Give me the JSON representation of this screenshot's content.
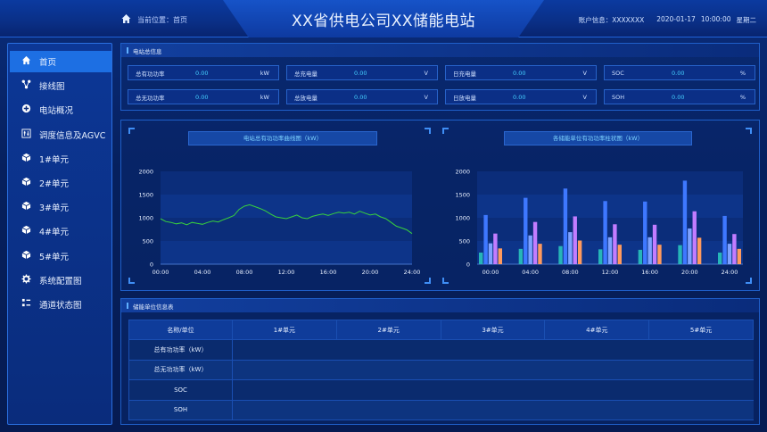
{
  "header": {
    "location_label": "当前位置：首页",
    "title": "XX省供电公司XX储能电站",
    "account": "账户信息：XXXXXXX",
    "date": "2020-01-17",
    "time": "10:00:00",
    "weekday": "星期二"
  },
  "sidebar": {
    "items": [
      {
        "label": "首页",
        "icon": "home-icon",
        "active": true
      },
      {
        "label": "接线图",
        "icon": "network-icon"
      },
      {
        "label": "电站概况",
        "icon": "plus-circle-icon"
      },
      {
        "label": "调度信息及AGVC",
        "icon": "sliders-icon"
      },
      {
        "label": "1#单元",
        "icon": "cube-icon"
      },
      {
        "label": "2#单元",
        "icon": "cube-icon"
      },
      {
        "label": "3#单元",
        "icon": "cube-icon"
      },
      {
        "label": "4#单元",
        "icon": "cube-icon"
      },
      {
        "label": "5#单元",
        "icon": "cube-icon"
      },
      {
        "label": "系统配置图",
        "icon": "gear-icon"
      },
      {
        "label": "通道状态图",
        "icon": "list-icon"
      }
    ]
  },
  "station": {
    "title": "电站总信息",
    "metrics": [
      {
        "label": "总有功功率",
        "value": "0.00",
        "unit": "kW"
      },
      {
        "label": "总充电量",
        "value": "0.00",
        "unit": "V"
      },
      {
        "label": "日充电量",
        "value": "0.00",
        "unit": "V"
      },
      {
        "label": "SOC",
        "value": "0.00",
        "unit": "%"
      },
      {
        "label": "总无功功率",
        "value": "0.00",
        "unit": "kW"
      },
      {
        "label": "总放电量",
        "value": "0.00",
        "unit": "V"
      },
      {
        "label": "日放电量",
        "value": "0.00",
        "unit": "V"
      },
      {
        "label": "SOH",
        "value": "0.00",
        "unit": "%"
      }
    ]
  },
  "colors": {
    "line": "#38d23c",
    "bars": [
      "#26b5b8",
      "#3e78ff",
      "#7fa2ff",
      "#c27cff",
      "#ff9a5e"
    ]
  },
  "chart_data": [
    {
      "type": "line",
      "title": "电站总有功功率曲线图（kW）",
      "x_ticks": [
        "00:00",
        "04:00",
        "08:00",
        "12:00",
        "16:00",
        "20:00",
        "24:00"
      ],
      "y_ticks": [
        "0",
        "500",
        "1000",
        "1500",
        "2000"
      ],
      "ylim": [
        0,
        2000
      ],
      "xlim": [
        0,
        24
      ],
      "grid": true,
      "x": [
        0,
        0.5,
        1,
        1.5,
        2,
        2.5,
        3,
        3.5,
        4,
        4.5,
        5,
        5.5,
        6,
        6.5,
        7,
        7.5,
        8,
        8.5,
        9,
        9.5,
        10,
        10.5,
        11,
        11.5,
        12,
        12.5,
        13,
        13.5,
        14,
        14.5,
        15,
        15.5,
        16,
        16.5,
        17,
        17.5,
        18,
        18.5,
        19,
        19.5,
        20,
        20.5,
        21,
        21.5,
        22,
        22.5,
        23,
        23.5,
        24
      ],
      "values": [
        980,
        920,
        900,
        870,
        890,
        850,
        900,
        880,
        860,
        900,
        930,
        910,
        960,
        1000,
        1050,
        1180,
        1250,
        1280,
        1240,
        1200,
        1150,
        1080,
        1020,
        1000,
        980,
        1020,
        1060,
        1000,
        980,
        1030,
        1060,
        1080,
        1050,
        1090,
        1120,
        1100,
        1120,
        1080,
        1140,
        1100,
        1060,
        1080,
        1020,
        980,
        900,
        820,
        780,
        740,
        660
      ]
    },
    {
      "type": "bar",
      "title": "各储能单位有功功率柱状图（kW）",
      "categories": [
        "00:00",
        "04:00",
        "08:00",
        "12:00",
        "16:00",
        "20:00",
        "24:00"
      ],
      "y_ticks": [
        "0",
        "500",
        "1000",
        "1500",
        "2000"
      ],
      "ylim": [
        0,
        2000
      ],
      "grid": true,
      "series": [
        {
          "values": [
            250,
            330,
            390,
            320,
            310,
            410,
            250
          ]
        },
        {
          "values": [
            1060,
            1430,
            1630,
            1360,
            1350,
            1800,
            1040
          ]
        },
        {
          "values": [
            450,
            620,
            690,
            580,
            580,
            770,
            440
          ]
        },
        {
          "values": [
            660,
            910,
            1030,
            860,
            850,
            1140,
            650
          ]
        },
        {
          "values": [
            340,
            440,
            510,
            420,
            420,
            570,
            330
          ]
        }
      ]
    }
  ],
  "unit_table": {
    "title": "储能单位信息表",
    "headers": [
      "名称/单位",
      "1#单元",
      "2#单元",
      "3#单元",
      "4#单元",
      "5#单元"
    ],
    "rows": [
      {
        "label": "总有功功率（kW）",
        "values": [
          "",
          "",
          "",
          "",
          ""
        ]
      },
      {
        "label": "总无功功率（kW）",
        "values": [
          "",
          "",
          "",
          "",
          ""
        ]
      },
      {
        "label": "SOC",
        "values": [
          "",
          "",
          "",
          "",
          ""
        ]
      },
      {
        "label": "SOH",
        "values": [
          "",
          "",
          "",
          "",
          ""
        ]
      }
    ]
  }
}
